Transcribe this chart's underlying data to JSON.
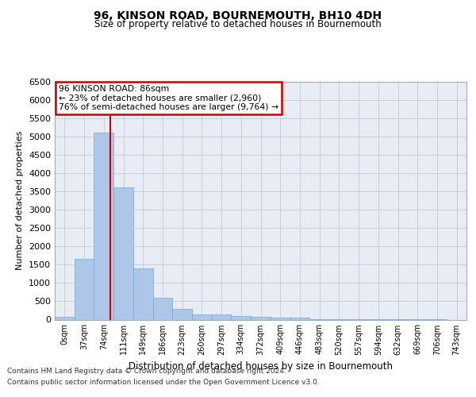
{
  "title": "96, KINSON ROAD, BOURNEMOUTH, BH10 4DH",
  "subtitle": "Size of property relative to detached houses in Bournemouth",
  "xlabel": "Distribution of detached houses by size in Bournemouth",
  "ylabel": "Number of detached properties",
  "bin_labels": [
    "0sqm",
    "37sqm",
    "74sqm",
    "111sqm",
    "149sqm",
    "186sqm",
    "223sqm",
    "260sqm",
    "297sqm",
    "334sqm",
    "372sqm",
    "409sqm",
    "446sqm",
    "483sqm",
    "520sqm",
    "557sqm",
    "594sqm",
    "632sqm",
    "669sqm",
    "706sqm",
    "743sqm"
  ],
  "bar_values": [
    70,
    1650,
    5100,
    3600,
    1400,
    600,
    300,
    150,
    140,
    90,
    70,
    50,
    50,
    5,
    5,
    5,
    5,
    5,
    5,
    5,
    0
  ],
  "bar_color": "#aec6e8",
  "bar_edge_color": "#7aa8d0",
  "vline_color": "#cc0000",
  "annotation_text": "96 KINSON ROAD: 86sqm\n← 23% of detached houses are smaller (2,960)\n76% of semi-detached houses are larger (9,764) →",
  "annotation_box_color": "#cc0000",
  "ylim": [
    0,
    6500
  ],
  "yticks": [
    0,
    500,
    1000,
    1500,
    2000,
    2500,
    3000,
    3500,
    4000,
    4500,
    5000,
    5500,
    6000,
    6500
  ],
  "grid_color": "#c8d0dc",
  "bg_color": "#e8ecf4",
  "footer_line1": "Contains HM Land Registry data © Crown copyright and database right 2024.",
  "footer_line2": "Contains public sector information licensed under the Open Government Licence v3.0."
}
